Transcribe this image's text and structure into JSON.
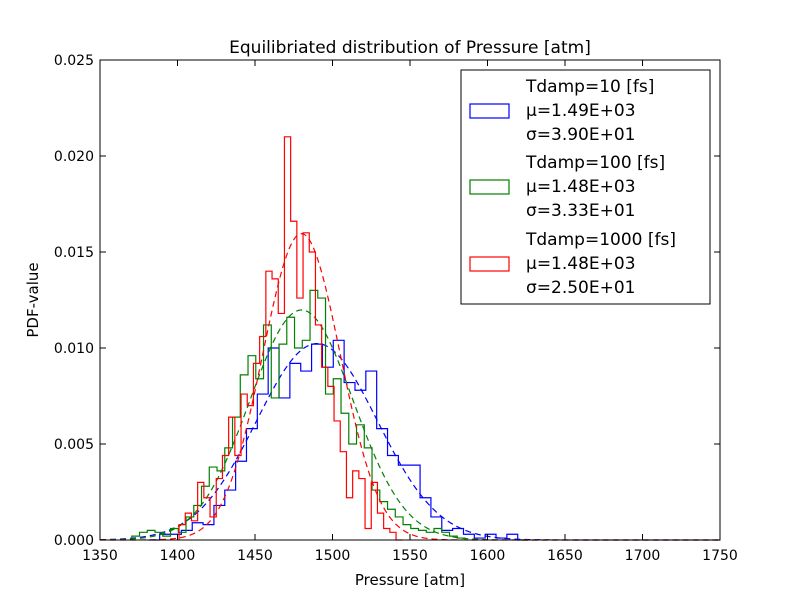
{
  "chart_data": {
    "type": "histogram",
    "title": "Equilibriated distribution of Pressure [atm]",
    "xlabel": "Pressure [atm]",
    "ylabel": "PDF-value",
    "xlim": [
      1350,
      1750
    ],
    "ylim": [
      0,
      0.025
    ],
    "x_ticks": [
      "1350",
      "1400",
      "1450",
      "1500",
      "1550",
      "1600",
      "1650",
      "1700",
      "1750"
    ],
    "y_ticks": [
      "0.000",
      "0.005",
      "0.010",
      "0.015",
      "0.020",
      "0.025"
    ],
    "grid": false,
    "legend_position": "top-right",
    "series": [
      {
        "name": "Tdamp=10 [fs]",
        "mu_label": "μ=1.49E+03",
        "sigma_label": "σ=3.90E+01",
        "color": "#0000ff",
        "mu": 1490,
        "sigma": 39.0,
        "hist": [
          [
            1385,
            0.0
          ],
          [
            1392,
            0.0003
          ],
          [
            1399,
            0.0003
          ],
          [
            1406,
            0.0005
          ],
          [
            1413,
            0.0009
          ],
          [
            1420,
            0.0008
          ],
          [
            1427,
            0.0018
          ],
          [
            1434,
            0.0026
          ],
          [
            1441,
            0.0041
          ],
          [
            1448,
            0.0058
          ],
          [
            1455,
            0.0076
          ],
          [
            1462,
            0.01
          ],
          [
            1469,
            0.0074
          ],
          [
            1476,
            0.0092
          ],
          [
            1483,
            0.0088
          ],
          [
            1490,
            0.0102
          ],
          [
            1497,
            0.009
          ],
          [
            1504,
            0.0104
          ],
          [
            1511,
            0.0082
          ],
          [
            1518,
            0.0078
          ],
          [
            1525,
            0.0088
          ],
          [
            1532,
            0.0058
          ],
          [
            1539,
            0.0044
          ],
          [
            1546,
            0.0039
          ],
          [
            1553,
            0.0039
          ],
          [
            1560,
            0.0022
          ],
          [
            1567,
            0.0012
          ],
          [
            1574,
            0.0005
          ],
          [
            1581,
            0.0006
          ],
          [
            1588,
            0.0003
          ],
          [
            1595,
            0.0001
          ],
          [
            1602,
            0.0003
          ],
          [
            1609,
            0.0001
          ],
          [
            1616,
            0.0003
          ],
          [
            1623,
            0.0
          ]
        ]
      },
      {
        "name": "Tdamp=100 [fs]",
        "mu_label": "μ=1.48E+03",
        "sigma_label": "σ=3.33E+01",
        "color": "#008000",
        "mu": 1480,
        "sigma": 33.3,
        "hist": [
          [
            1373,
            0.0002
          ],
          [
            1378,
            0.0004
          ],
          [
            1383,
            0.0005
          ],
          [
            1388,
            0.0004
          ],
          [
            1393,
            0.0002
          ],
          [
            1398,
            0.0006
          ],
          [
            1403,
            0.0004
          ],
          [
            1408,
            0.0012
          ],
          [
            1413,
            0.0018
          ],
          [
            1418,
            0.0028
          ],
          [
            1423,
            0.0038
          ],
          [
            1428,
            0.0036
          ],
          [
            1433,
            0.0048
          ],
          [
            1438,
            0.0064
          ],
          [
            1443,
            0.0086
          ],
          [
            1448,
            0.0096
          ],
          [
            1453,
            0.0084
          ],
          [
            1458,
            0.0112
          ],
          [
            1463,
            0.0074
          ],
          [
            1468,
            0.0102
          ],
          [
            1473,
            0.0116
          ],
          [
            1478,
            0.01
          ],
          [
            1483,
            0.0104
          ],
          [
            1488,
            0.013
          ],
          [
            1493,
            0.0126
          ],
          [
            1498,
            0.0076
          ],
          [
            1503,
            0.0084
          ],
          [
            1508,
            0.0066
          ],
          [
            1513,
            0.005
          ],
          [
            1518,
            0.006
          ],
          [
            1523,
            0.0048
          ],
          [
            1528,
            0.0026
          ],
          [
            1533,
            0.002
          ],
          [
            1538,
            0.0016
          ],
          [
            1543,
            0.0012
          ],
          [
            1548,
            0.0008
          ],
          [
            1553,
            0.0006
          ],
          [
            1558,
            0.0005
          ],
          [
            1563,
            0.0004
          ],
          [
            1568,
            0.0006
          ],
          [
            1573,
            0.0004
          ],
          [
            1578,
            0.0002
          ],
          [
            1583,
            0.0001
          ]
        ]
      },
      {
        "name": "Tdamp=1000 [fs]",
        "mu_label": "μ=1.48E+03",
        "sigma_label": "σ=2.50E+01",
        "color": "#ff0000",
        "mu": 1480,
        "sigma": 25.0,
        "hist": [
          [
            1403,
            0.0008
          ],
          [
            1407,
            0.0014
          ],
          [
            1411,
            0.001
          ],
          [
            1415,
            0.003
          ],
          [
            1419,
            0.0022
          ],
          [
            1423,
            0.0012
          ],
          [
            1427,
            0.0032
          ],
          [
            1431,
            0.0044
          ],
          [
            1435,
            0.0064
          ],
          [
            1439,
            0.0044
          ],
          [
            1443,
            0.0076
          ],
          [
            1447,
            0.007
          ],
          [
            1451,
            0.0092
          ],
          [
            1455,
            0.0106
          ],
          [
            1459,
            0.014
          ],
          [
            1463,
            0.0136
          ],
          [
            1467,
            0.0118
          ],
          [
            1471,
            0.021
          ],
          [
            1475,
            0.0166
          ],
          [
            1479,
            0.0126
          ],
          [
            1483,
            0.016
          ],
          [
            1487,
            0.015
          ],
          [
            1491,
            0.0112
          ],
          [
            1495,
            0.009
          ],
          [
            1499,
            0.008
          ],
          [
            1503,
            0.0062
          ],
          [
            1507,
            0.0046
          ],
          [
            1511,
            0.0022
          ],
          [
            1515,
            0.0036
          ],
          [
            1519,
            0.0032
          ],
          [
            1523,
            0.0006
          ],
          [
            1527,
            0.003
          ],
          [
            1531,
            0.0014
          ],
          [
            1535,
            0.0006
          ],
          [
            1539,
            0.0004
          ],
          [
            1543,
            0.0
          ]
        ]
      }
    ]
  }
}
